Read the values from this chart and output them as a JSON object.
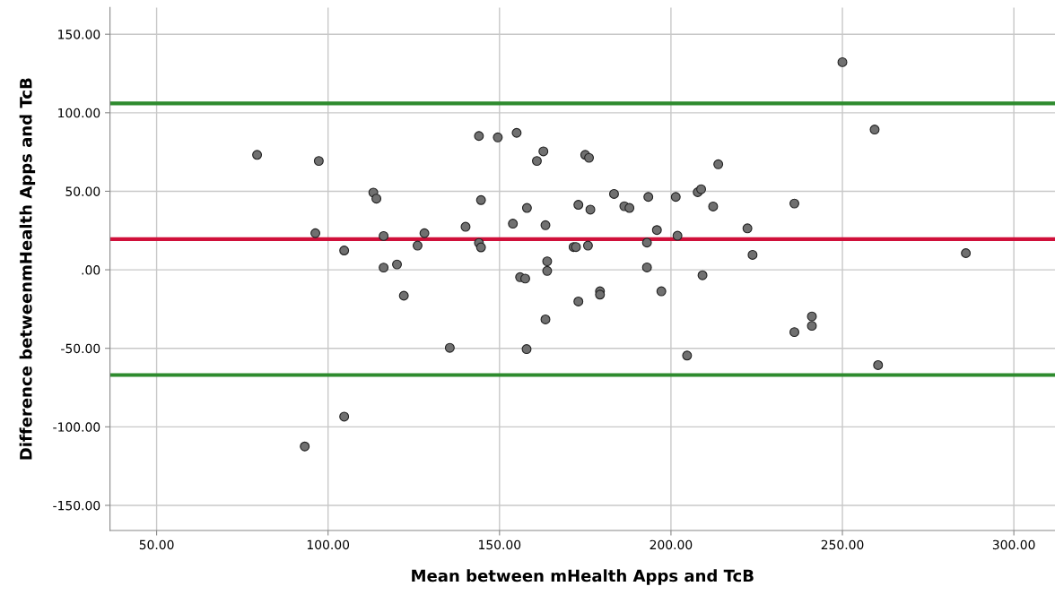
{
  "chart_data": {
    "type": "scatter",
    "xlabel": "Mean between mHealth Apps and TcB",
    "ylabel": "Difference betweenmHealth Apps and TcB",
    "xlim": [
      36.4,
      312
    ],
    "ylim": [
      -166,
      167
    ],
    "xticks": [
      {
        "value": 50,
        "label": "50.00"
      },
      {
        "value": 100,
        "label": "100.00"
      },
      {
        "value": 150,
        "label": "150.00"
      },
      {
        "value": 200,
        "label": "200.00"
      },
      {
        "value": 250,
        "label": "250.00"
      },
      {
        "value": 300,
        "label": "300.00"
      }
    ],
    "yticks": [
      {
        "value": -150,
        "label": "-150.00"
      },
      {
        "value": -100,
        "label": "-100.00"
      },
      {
        "value": -50,
        "label": "-50.00"
      },
      {
        "value": 0,
        "label": ".00"
      },
      {
        "value": 50,
        "label": "50.00"
      },
      {
        "value": 100,
        "label": "100.00"
      },
      {
        "value": 150,
        "label": "150.00"
      }
    ],
    "grid": true,
    "marker": "circle",
    "series": [
      {
        "color": "#707070",
        "x": [
          79.3,
          97.3,
          96.3,
          104.7,
          113.2,
          114.1,
          116.2,
          116.2,
          120.1,
          122.1,
          126.1,
          128.1,
          140.1,
          144.0,
          144.6,
          144.0,
          144.6,
          149.5,
          155.0,
          153.9,
          158.0,
          156.0,
          157.5,
          160.9,
          162.8,
          175.0,
          176.1,
          213.8,
          259.4,
          250.0,
          183.4,
          193.4,
          201.4,
          207.8,
          208.8,
          212.3,
          236.0,
          173.0,
          176.5,
          186.4,
          187.9,
          163.4,
          195.9,
          201.9,
          222.3,
          223.8,
          286.0,
          171.6,
          172.3,
          175.8,
          193.0,
          163.9,
          163.9,
          193.0,
          209.2,
          179.3,
          179.3,
          197.2,
          173.0,
          157.9,
          163.4,
          204.7,
          236.0,
          241.1,
          241.1,
          260.4,
          135.5,
          104.7,
          93.2
        ],
        "values": [
          73.2,
          69.3,
          23.3,
          12.3,
          49.2,
          45.3,
          21.5,
          1.4,
          3.4,
          -16.5,
          15.4,
          23.3,
          27.4,
          85.2,
          44.4,
          17.1,
          14.3,
          84.3,
          87.2,
          29.4,
          39.4,
          -4.7,
          -5.6,
          69.3,
          75.4,
          73.2,
          71.3,
          67.2,
          89.3,
          132.2,
          48.3,
          46.4,
          46.4,
          49.4,
          51.3,
          40.3,
          42.2,
          41.4,
          38.3,
          40.5,
          39.4,
          28.4,
          25.3,
          21.7,
          26.4,
          9.5,
          10.6,
          14.5,
          14.5,
          15.4,
          17.3,
          5.4,
          -0.7,
          1.5,
          -3.5,
          -13.7,
          -15.8,
          -13.7,
          -20.2,
          -50.5,
          -31.6,
          -54.6,
          -39.7,
          -29.7,
          -35.7,
          -60.7,
          -49.7,
          -93.5,
          -112.5
        ]
      }
    ],
    "ref_lines": [
      {
        "axis": "y",
        "value": 106,
        "color": "#2e8b2e"
      },
      {
        "axis": "y",
        "value": 19.5,
        "color": "#d0103a"
      },
      {
        "axis": "y",
        "value": -67,
        "color": "#2e8b2e"
      }
    ]
  }
}
